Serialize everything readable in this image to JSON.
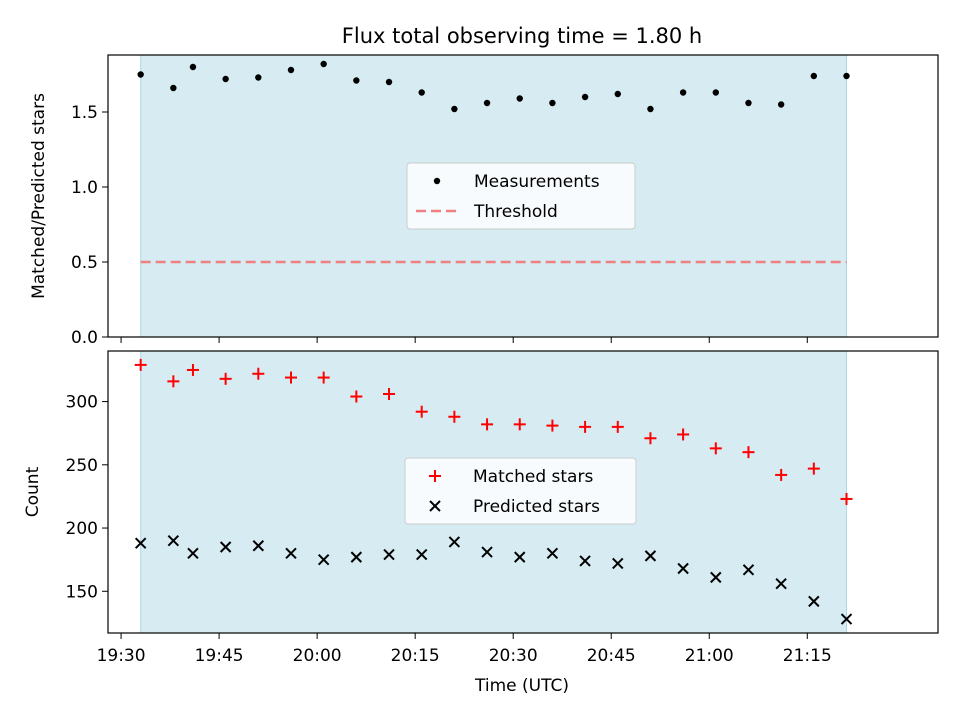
{
  "title": "Flux total observing time = 1.80 h",
  "colors": {
    "shade": "#add8e6",
    "measurement": "#000000",
    "threshold": "#f08080",
    "matched": "#ff0000",
    "predicted": "#000000"
  },
  "chart_data": [
    {
      "type": "scatter",
      "ylabel": "Matched/Predicted stars",
      "ylim": [
        0,
        1.88
      ],
      "yticks": [
        "0.0",
        "0.5",
        "1.0",
        "1.5"
      ],
      "legend_placement": "center",
      "observing_window": [
        "19:33",
        "21:21"
      ],
      "series": [
        {
          "name": "Measurements",
          "x": [
            "19:33",
            "19:38",
            "19:41",
            "19:46",
            "19:51",
            "19:56",
            "20:01",
            "20:06",
            "20:11",
            "20:16",
            "20:21",
            "20:26",
            "20:31",
            "20:36",
            "20:41",
            "20:46",
            "20:51",
            "20:56",
            "21:01",
            "21:06",
            "21:11",
            "21:16",
            "21:21"
          ],
          "values": [
            1.75,
            1.66,
            1.8,
            1.72,
            1.73,
            1.78,
            1.82,
            1.71,
            1.7,
            1.63,
            1.52,
            1.56,
            1.59,
            1.56,
            1.6,
            1.62,
            1.52,
            1.63,
            1.63,
            1.56,
            1.55,
            1.74,
            1.74
          ]
        },
        {
          "name": "Threshold",
          "type": "line",
          "value": 0.5
        }
      ]
    },
    {
      "type": "scatter",
      "ylabel": "Count",
      "xlabel": "Time (UTC)",
      "ylim": [
        117,
        340
      ],
      "yticks": [
        "150",
        "200",
        "250",
        "300"
      ],
      "xlim": [
        "19:28",
        "21:35"
      ],
      "xticks": [
        "19:30",
        "19:45",
        "20:00",
        "20:15",
        "20:30",
        "20:45",
        "21:00",
        "21:15"
      ],
      "legend_placement": "center",
      "observing_window": [
        "19:33",
        "21:21"
      ],
      "series": [
        {
          "name": "Matched stars",
          "x": [
            "19:33",
            "19:38",
            "19:41",
            "19:46",
            "19:51",
            "19:56",
            "20:01",
            "20:06",
            "20:11",
            "20:16",
            "20:21",
            "20:26",
            "20:31",
            "20:36",
            "20:41",
            "20:46",
            "20:51",
            "20:56",
            "21:01",
            "21:06",
            "21:11",
            "21:16",
            "21:21"
          ],
          "values": [
            329,
            316,
            325,
            318,
            322,
            319,
            319,
            304,
            306,
            292,
            288,
            282,
            282,
            281,
            280,
            280,
            271,
            274,
            263,
            260,
            242,
            247,
            223
          ]
        },
        {
          "name": "Predicted stars",
          "x": [
            "19:33",
            "19:38",
            "19:41",
            "19:46",
            "19:51",
            "19:56",
            "20:01",
            "20:06",
            "20:11",
            "20:16",
            "20:21",
            "20:26",
            "20:31",
            "20:36",
            "20:41",
            "20:46",
            "20:51",
            "20:56",
            "21:01",
            "21:06",
            "21:11",
            "21:16",
            "21:21"
          ],
          "values": [
            188,
            190,
            180,
            185,
            186,
            180,
            175,
            177,
            179,
            179,
            189,
            181,
            177,
            180,
            174,
            172,
            178,
            168,
            161,
            167,
            156,
            142,
            128
          ]
        }
      ]
    }
  ]
}
